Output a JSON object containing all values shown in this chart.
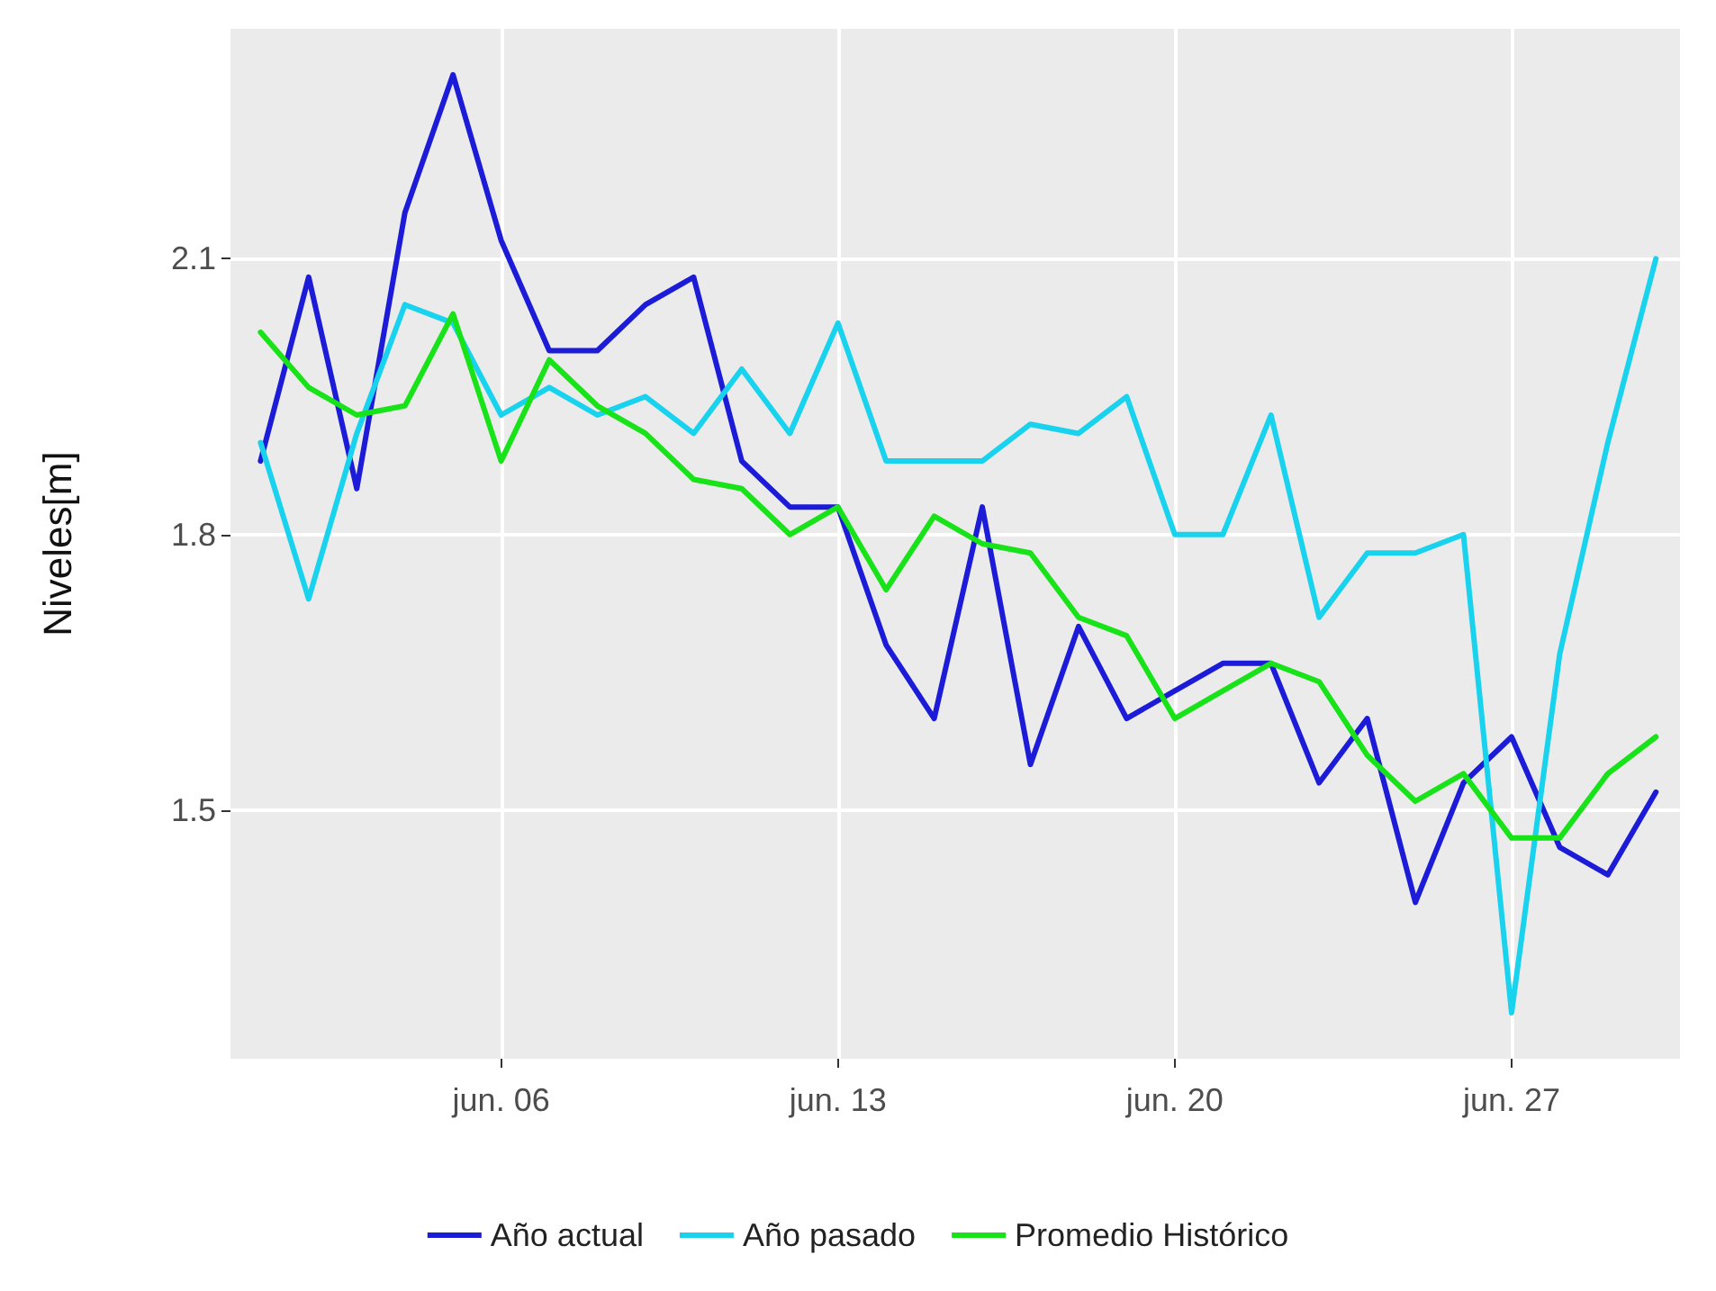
{
  "chart_data": {
    "type": "line",
    "ylabel": "Niveles[m]",
    "x": [
      "--06-01",
      "--06-02",
      "--06-03",
      "--06-04",
      "--06-05",
      "--06-06",
      "--06-07",
      "--06-08",
      "--06-09",
      "--06-10",
      "--06-11",
      "--06-12",
      "--06-13",
      "--06-14",
      "--06-15",
      "--06-16",
      "--06-17",
      "--06-18",
      "--06-19",
      "--06-20",
      "--06-21",
      "--06-22",
      "--06-23",
      "--06-24",
      "--06-25",
      "--06-26",
      "--06-27",
      "--06-28",
      "--06-29",
      "--06-30"
    ],
    "series": [
      {
        "name": "Año actual",
        "color": "#1c1cd8",
        "values": [
          1.88,
          2.08,
          1.85,
          2.15,
          2.3,
          2.12,
          2.0,
          2.0,
          2.05,
          2.08,
          1.88,
          1.83,
          1.83,
          1.68,
          1.6,
          1.83,
          1.55,
          1.7,
          1.6,
          1.63,
          1.66,
          1.66,
          1.53,
          1.6,
          1.4,
          1.53,
          1.58,
          1.46,
          1.43,
          1.52
        ]
      },
      {
        "name": "Año pasado",
        "color": "#18d2ee",
        "values": [
          1.9,
          1.73,
          1.91,
          2.05,
          2.03,
          1.93,
          1.96,
          1.93,
          1.95,
          1.91,
          1.98,
          1.91,
          2.03,
          1.88,
          1.88,
          1.88,
          1.92,
          1.91,
          1.95,
          1.8,
          1.8,
          1.93,
          1.71,
          1.78,
          1.78,
          1.8,
          1.28,
          1.67,
          1.9,
          2.1
        ]
      },
      {
        "name": "Promedio Histórico",
        "color": "#18e218",
        "values": [
          2.02,
          1.96,
          1.93,
          1.94,
          2.04,
          1.88,
          1.99,
          1.94,
          1.91,
          1.86,
          1.85,
          1.8,
          1.83,
          1.74,
          1.82,
          1.79,
          1.78,
          1.71,
          1.69,
          1.6,
          1.63,
          1.66,
          1.64,
          1.56,
          1.51,
          1.54,
          1.47,
          1.47,
          1.54,
          1.58
        ]
      }
    ],
    "xlim": [
      "--05-31T09:00",
      "--06-30T12:00"
    ],
    "xticks": [
      {
        "value": "--06-06",
        "label": "jun. 06"
      },
      {
        "value": "--06-13",
        "label": "jun. 13"
      },
      {
        "value": "--06-20",
        "label": "jun. 20"
      },
      {
        "value": "--06-27",
        "label": "jun. 27"
      }
    ],
    "ylim": [
      1.23,
      2.35
    ],
    "yticks": [
      1.5,
      1.8,
      2.1
    ],
    "grid": true,
    "legend": "bottom",
    "line_style": "solid",
    "marker": "none"
  }
}
